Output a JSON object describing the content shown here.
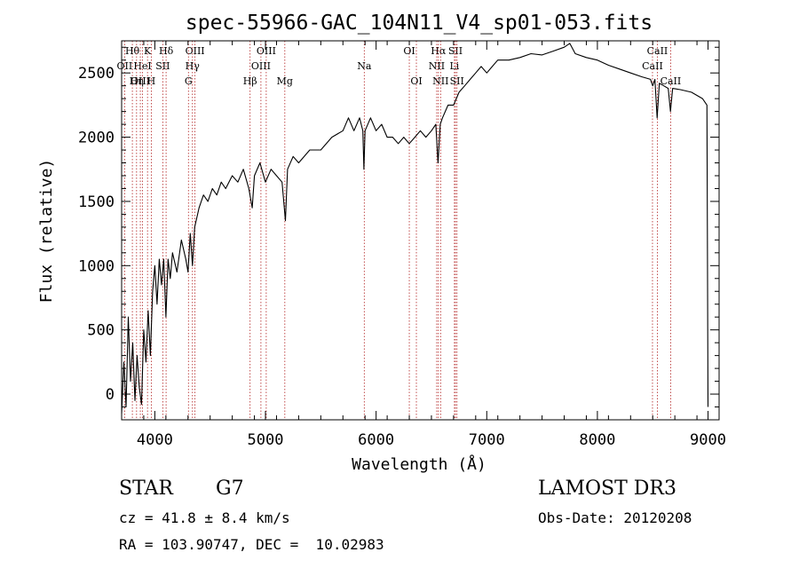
{
  "chart_data": {
    "type": "line",
    "title": "spec-55966-GAC_104N11_V4_sp01-053.fits",
    "xlabel": "Wavelength (Å)",
    "ylabel": "Flux (relative)",
    "xlim": [
      3700,
      9100
    ],
    "ylim": [
      -200,
      2750
    ],
    "xticks": [
      4000,
      5000,
      6000,
      7000,
      8000,
      9000
    ],
    "yticks": [
      0,
      500,
      1000,
      1500,
      2000,
      2500
    ],
    "x_tick_labels": [
      "4000",
      "5000",
      "6000",
      "7000",
      "8000",
      "9000"
    ],
    "y_tick_labels": [
      "0",
      "500",
      "1000",
      "1500",
      "2000",
      "2500"
    ],
    "line_color": "#000000",
    "marker_color": "#b22222",
    "series": [
      {
        "name": "flux",
        "points": [
          [
            3700,
            -150
          ],
          [
            3720,
            250
          ],
          [
            3740,
            -100
          ],
          [
            3760,
            600
          ],
          [
            3780,
            100
          ],
          [
            3800,
            400
          ],
          [
            3820,
            -50
          ],
          [
            3840,
            300
          ],
          [
            3860,
            50
          ],
          [
            3880,
            -80
          ],
          [
            3900,
            500
          ],
          [
            3920,
            250
          ],
          [
            3940,
            650
          ],
          [
            3960,
            300
          ],
          [
            3980,
            800
          ],
          [
            4000,
            1000
          ],
          [
            4020,
            700
          ],
          [
            4040,
            1050
          ],
          [
            4060,
            850
          ],
          [
            4080,
            1050
          ],
          [
            4100,
            600
          ],
          [
            4120,
            1050
          ],
          [
            4140,
            900
          ],
          [
            4160,
            1100
          ],
          [
            4200,
            950
          ],
          [
            4240,
            1200
          ],
          [
            4280,
            1050
          ],
          [
            4300,
            950
          ],
          [
            4320,
            1250
          ],
          [
            4340,
            1000
          ],
          [
            4360,
            1300
          ],
          [
            4400,
            1450
          ],
          [
            4440,
            1550
          ],
          [
            4480,
            1500
          ],
          [
            4520,
            1600
          ],
          [
            4560,
            1550
          ],
          [
            4600,
            1650
          ],
          [
            4640,
            1600
          ],
          [
            4700,
            1700
          ],
          [
            4750,
            1650
          ],
          [
            4800,
            1750
          ],
          [
            4850,
            1600
          ],
          [
            4880,
            1450
          ],
          [
            4900,
            1700
          ],
          [
            4950,
            1800
          ],
          [
            5000,
            1650
          ],
          [
            5050,
            1750
          ],
          [
            5100,
            1700
          ],
          [
            5150,
            1650
          ],
          [
            5180,
            1350
          ],
          [
            5200,
            1750
          ],
          [
            5250,
            1850
          ],
          [
            5300,
            1800
          ],
          [
            5400,
            1900
          ],
          [
            5500,
            1900
          ],
          [
            5600,
            2000
          ],
          [
            5700,
            2050
          ],
          [
            5750,
            2150
          ],
          [
            5800,
            2050
          ],
          [
            5850,
            2150
          ],
          [
            5880,
            2050
          ],
          [
            5890,
            1750
          ],
          [
            5900,
            2050
          ],
          [
            5950,
            2150
          ],
          [
            6000,
            2050
          ],
          [
            6050,
            2100
          ],
          [
            6100,
            2000
          ],
          [
            6150,
            2000
          ],
          [
            6200,
            1950
          ],
          [
            6250,
            2000
          ],
          [
            6300,
            1950
          ],
          [
            6350,
            2000
          ],
          [
            6400,
            2050
          ],
          [
            6450,
            2000
          ],
          [
            6500,
            2050
          ],
          [
            6540,
            2100
          ],
          [
            6560,
            1800
          ],
          [
            6580,
            2100
          ],
          [
            6600,
            2150
          ],
          [
            6650,
            2250
          ],
          [
            6700,
            2250
          ],
          [
            6750,
            2350
          ],
          [
            6800,
            2400
          ],
          [
            6850,
            2450
          ],
          [
            6900,
            2500
          ],
          [
            6950,
            2550
          ],
          [
            7000,
            2500
          ],
          [
            7050,
            2550
          ],
          [
            7100,
            2600
          ],
          [
            7200,
            2600
          ],
          [
            7300,
            2620
          ],
          [
            7400,
            2650
          ],
          [
            7500,
            2640
          ],
          [
            7600,
            2670
          ],
          [
            7700,
            2700
          ],
          [
            7750,
            2730
          ],
          [
            7800,
            2650
          ],
          [
            7900,
            2620
          ],
          [
            8000,
            2600
          ],
          [
            8100,
            2560
          ],
          [
            8200,
            2530
          ],
          [
            8300,
            2500
          ],
          [
            8400,
            2470
          ],
          [
            8480,
            2450
          ],
          [
            8500,
            2400
          ],
          [
            8520,
            2450
          ],
          [
            8540,
            2150
          ],
          [
            8560,
            2420
          ],
          [
            8600,
            2400
          ],
          [
            8640,
            2380
          ],
          [
            8660,
            2200
          ],
          [
            8680,
            2380
          ],
          [
            8750,
            2370
          ],
          [
            8850,
            2350
          ],
          [
            8950,
            2300
          ],
          [
            8990,
            2250
          ],
          [
            9000,
            -100
          ]
        ]
      }
    ],
    "line_markers": [
      {
        "label": "Hθ",
        "x": 3797,
        "row": 0
      },
      {
        "label": "K",
        "x": 3934,
        "row": 0
      },
      {
        "label": "Hδ",
        "x": 4102,
        "row": 0
      },
      {
        "label": "OIII",
        "x": 4363,
        "row": 0
      },
      {
        "label": "OIII",
        "x": 5007,
        "row": 0
      },
      {
        "label": "OI",
        "x": 6300,
        "row": 0
      },
      {
        "label": "Hα",
        "x": 6563,
        "row": 0
      },
      {
        "label": "SII",
        "x": 6717,
        "row": 0
      },
      {
        "label": "CaII",
        "x": 8542,
        "row": 0
      },
      {
        "label": "OII",
        "x": 3727,
        "row": 1
      },
      {
        "label": "HeI",
        "x": 3889,
        "row": 1
      },
      {
        "label": "SII",
        "x": 4072,
        "row": 1
      },
      {
        "label": "Hγ",
        "x": 4340,
        "row": 1
      },
      {
        "label": "OIII",
        "x": 4959,
        "row": 1
      },
      {
        "label": "NII",
        "x": 6548,
        "row": 1
      },
      {
        "label": "Li",
        "x": 6708,
        "row": 1
      },
      {
        "label": "CaII",
        "x": 8498,
        "row": 1
      },
      {
        "label": "OIII",
        "x": 3869,
        "row": 2
      },
      {
        "label": "Hη",
        "x": 3835,
        "row": 2
      },
      {
        "label": "H",
        "x": 3968,
        "row": 2
      },
      {
        "label": "G",
        "x": 4304,
        "row": 2
      },
      {
        "label": "Hβ",
        "x": 4861,
        "row": 2
      },
      {
        "label": "Mg",
        "x": 5175,
        "row": 2
      },
      {
        "label": "Na",
        "x": 5893,
        "row": 1
      },
      {
        "label": "OI",
        "x": 6364,
        "row": 2
      },
      {
        "label": "NII",
        "x": 6583,
        "row": 2
      },
      {
        "label": "SII",
        "x": 6731,
        "row": 2
      },
      {
        "label": "CaII",
        "x": 8662,
        "row": 2
      }
    ]
  },
  "info": {
    "object_class": "STAR",
    "subclass": "G7",
    "survey": "LAMOST DR3",
    "redshift": "cz = 41.8 ± 8.4 km/s",
    "obs_date": "Obs-Date: 20120208",
    "coords": "RA = 103.90747, DEC =  10.02983"
  }
}
